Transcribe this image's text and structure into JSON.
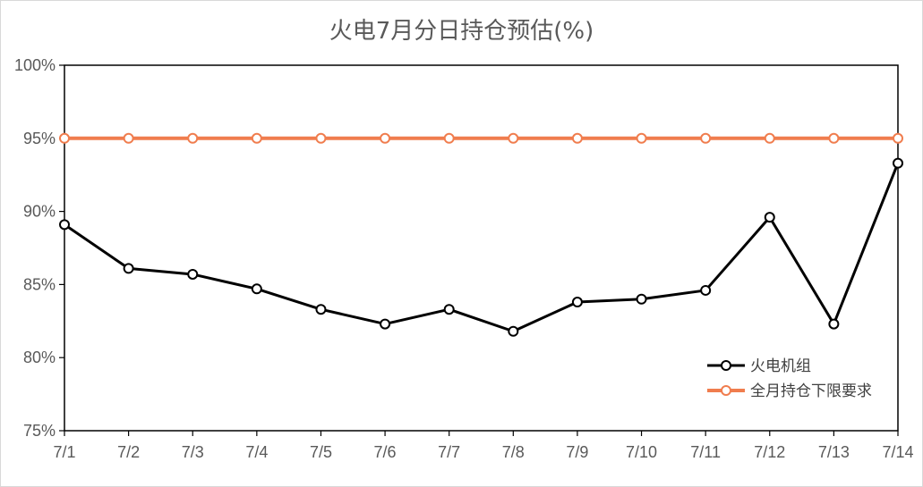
{
  "chart_data": {
    "type": "line",
    "title": "火电7月分日持仓预估(%)",
    "categories": [
      "7/1",
      "7/2",
      "7/3",
      "7/4",
      "7/5",
      "7/6",
      "7/7",
      "7/8",
      "7/9",
      "7/10",
      "7/11",
      "7/12",
      "7/13",
      "7/14"
    ],
    "ylim": [
      75,
      100
    ],
    "yticks": [
      75,
      80,
      85,
      90,
      95,
      100
    ],
    "ytick_labels": [
      "75%",
      "80%",
      "85%",
      "90%",
      "95%",
      "100%"
    ],
    "legend_position": "right",
    "grid": false,
    "series": [
      {
        "name": "火电机组",
        "color": "#000000",
        "values": [
          89.1,
          86.1,
          85.7,
          84.7,
          83.3,
          82.3,
          83.3,
          81.8,
          83.8,
          84.0,
          84.6,
          89.6,
          82.3,
          93.3
        ]
      },
      {
        "name": "全月持仓下限要求",
        "color": "#F07D4E",
        "values": [
          95,
          95,
          95,
          95,
          95,
          95,
          95,
          95,
          95,
          95,
          95,
          95,
          95,
          95
        ]
      }
    ]
  }
}
